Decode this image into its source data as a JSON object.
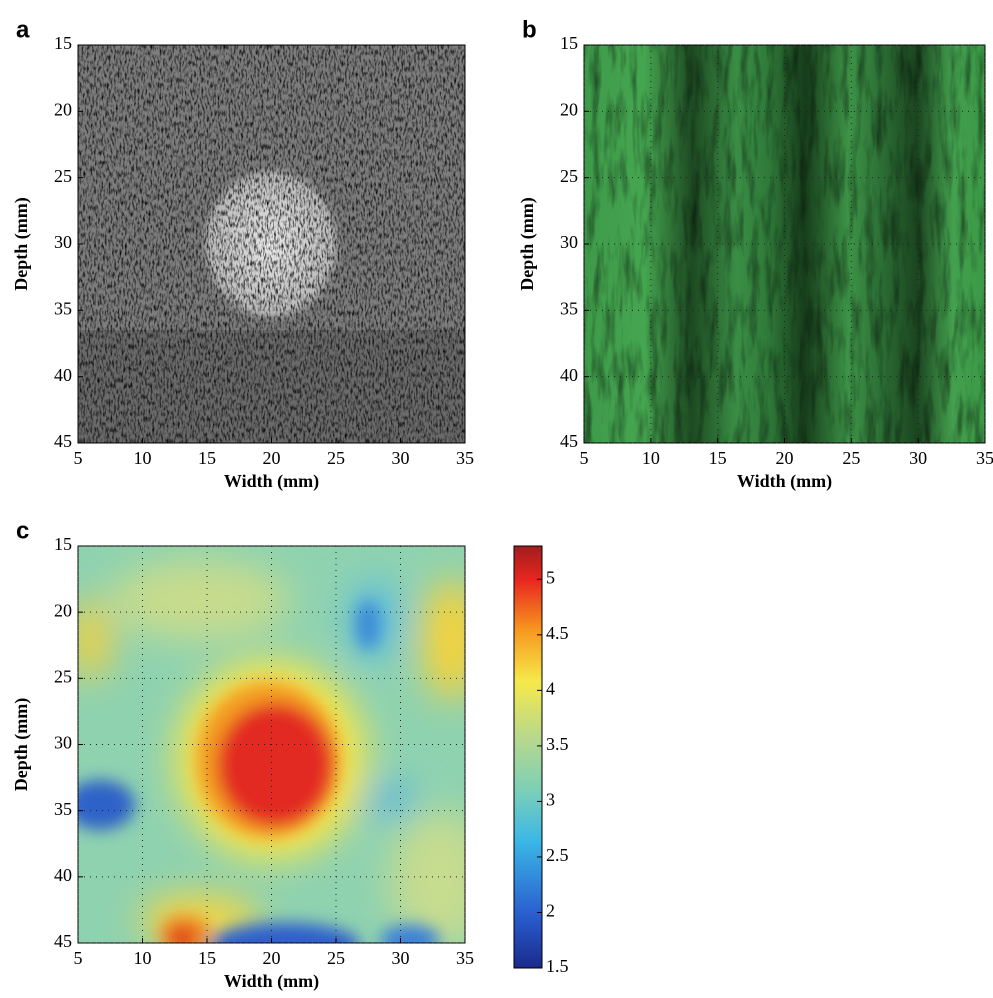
{
  "chart_data": [
    {
      "type": "image",
      "panel": "a",
      "xlabel": "Width (mm)",
      "ylabel": "Depth (mm)",
      "xlim": [
        5,
        35
      ],
      "xticks": [
        5,
        10,
        15,
        20,
        25,
        30,
        35
      ],
      "ylim": [
        45,
        15
      ],
      "yticks": [
        15,
        20,
        25,
        30,
        35,
        40,
        45
      ],
      "grid": false
    },
    {
      "type": "image",
      "panel": "b",
      "xlabel": "Width (mm)",
      "ylabel": "Depth (mm)",
      "xlim": [
        5,
        35
      ],
      "xticks": [
        5,
        10,
        15,
        20,
        25,
        30,
        35
      ],
      "ylim": [
        45,
        15
      ],
      "yticks": [
        15,
        20,
        25,
        30,
        35,
        40,
        45
      ],
      "grid": true
    },
    {
      "type": "image",
      "panel": "c",
      "xlabel": "Width (mm)",
      "ylabel": "Depth (mm)",
      "xlim": [
        5,
        35
      ],
      "xticks": [
        5,
        10,
        15,
        20,
        25,
        30,
        35
      ],
      "ylim": [
        45,
        15
      ],
      "yticks": [
        15,
        20,
        25,
        30,
        35,
        40,
        45
      ],
      "grid": true,
      "colorbar": {
        "lim": [
          1.5,
          5.3
        ],
        "ticks": [
          1.5,
          2,
          2.5,
          3,
          3.5,
          4,
          4.5,
          5
        ]
      }
    }
  ]
}
